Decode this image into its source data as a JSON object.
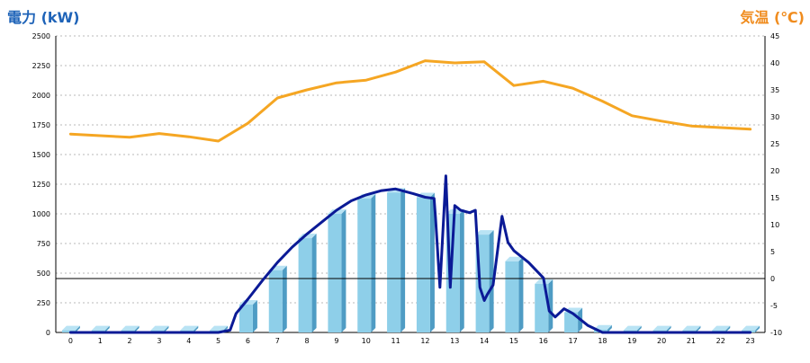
{
  "chart_data": {
    "type": "bar",
    "left_axis_title": "電力 (kW)",
    "right_axis_title": "気温 (℃)",
    "categories": [
      "0",
      "1",
      "2",
      "3",
      "4",
      "5",
      "6",
      "7",
      "8",
      "9",
      "10",
      "11",
      "12",
      "13",
      "14",
      "15",
      "16",
      "17",
      "18",
      "19",
      "20",
      "21",
      "22",
      "23"
    ],
    "y_left": {
      "min": 0,
      "max": 2500,
      "ticks": [
        "0",
        "250",
        "500",
        "750",
        "1000",
        "1250",
        "1500",
        "1750",
        "2000",
        "2250",
        "2500"
      ]
    },
    "y_right": {
      "min": -10,
      "max": 45,
      "ticks": [
        "-10",
        "-5",
        "0",
        "5",
        "10",
        "15",
        "20",
        "25",
        "30",
        "35",
        "40",
        "45"
      ]
    },
    "zero_reference_right": 0,
    "grid": "horizontal dashed",
    "colors": {
      "bar": "#8ecfe9",
      "bar_side": "#4f9cc4",
      "bar_top": "#b9e3f4",
      "power_line": "#0b1a96",
      "temp_line": "#f5a623",
      "left_title": "#1e63b8",
      "right_title": "#f08c1e"
    },
    "series": [
      {
        "kind": "bar",
        "axis": "left",
        "values": [
          18,
          18,
          18,
          18,
          18,
          18,
          235,
          525,
          795,
          1000,
          1130,
          1180,
          1140,
          1000,
          825,
          600,
          410,
          170,
          25,
          18,
          18,
          18,
          18,
          18
        ]
      },
      {
        "kind": "line",
        "axis": "left",
        "points": [
          [
            0,
            0
          ],
          [
            1,
            0
          ],
          [
            2,
            0
          ],
          [
            3,
            0
          ],
          [
            4,
            0
          ],
          [
            5,
            0
          ],
          [
            5.4,
            20
          ],
          [
            5.6,
            160
          ],
          [
            6,
            280
          ],
          [
            6.5,
            440
          ],
          [
            7,
            590
          ],
          [
            7.5,
            720
          ],
          [
            8,
            830
          ],
          [
            8.5,
            930
          ],
          [
            9,
            1030
          ],
          [
            9.5,
            1110
          ],
          [
            10,
            1160
          ],
          [
            10.5,
            1195
          ],
          [
            11,
            1210
          ],
          [
            11.3,
            1190
          ],
          [
            11.6,
            1170
          ],
          [
            12,
            1140
          ],
          [
            12.3,
            1130
          ],
          [
            12.35,
            970
          ],
          [
            12.5,
            380
          ],
          [
            12.7,
            1320
          ],
          [
            12.85,
            380
          ],
          [
            13,
            1070
          ],
          [
            13.2,
            1030
          ],
          [
            13.5,
            1010
          ],
          [
            13.7,
            1030
          ],
          [
            13.85,
            380
          ],
          [
            14,
            270
          ],
          [
            14.1,
            320
          ],
          [
            14.3,
            400
          ],
          [
            14.6,
            980
          ],
          [
            14.8,
            760
          ],
          [
            15,
            690
          ],
          [
            15.5,
            590
          ],
          [
            16,
            460
          ],
          [
            16.2,
            180
          ],
          [
            16.4,
            130
          ],
          [
            16.7,
            200
          ],
          [
            17,
            160
          ],
          [
            17.5,
            60
          ],
          [
            18,
            0
          ],
          [
            19,
            0
          ],
          [
            20,
            0
          ],
          [
            21,
            0
          ],
          [
            22,
            0
          ],
          [
            23,
            0
          ]
        ]
      },
      {
        "kind": "line",
        "axis": "right",
        "points": [
          [
            0,
            26.8
          ],
          [
            1,
            26.5
          ],
          [
            2,
            26.2
          ],
          [
            3,
            26.9
          ],
          [
            4,
            26.3
          ],
          [
            5,
            25.5
          ],
          [
            6,
            28.8
          ],
          [
            7,
            33.5
          ],
          [
            8,
            35
          ],
          [
            9,
            36.3
          ],
          [
            10,
            36.8
          ],
          [
            11,
            38.3
          ],
          [
            12,
            40.4
          ],
          [
            13,
            40.0
          ],
          [
            14,
            40.2
          ],
          [
            15,
            35.8
          ],
          [
            16,
            36.6
          ],
          [
            17,
            35.3
          ],
          [
            18,
            32.9
          ],
          [
            19,
            30.2
          ],
          [
            20,
            29.2
          ],
          [
            21,
            28.3
          ],
          [
            22,
            28.0
          ],
          [
            23,
            27.7
          ]
        ]
      }
    ]
  }
}
